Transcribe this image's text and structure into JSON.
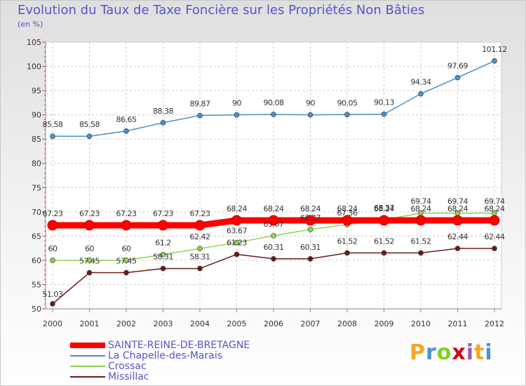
{
  "header": {
    "title": "Evolution du Taux de Taxe Foncière sur les Propriétés Non Bâties",
    "unit": "(en %)"
  },
  "brand": {
    "letters": [
      "P",
      "r",
      "o",
      "x",
      "i",
      "t",
      "i"
    ],
    "colors": [
      "#f5a623",
      "#4a90d9",
      "#7ed321",
      "#d0021b",
      "#9b59b6",
      "#f5a623",
      "#4a90d9"
    ]
  },
  "chart_data": {
    "type": "line",
    "title": "Evolution du Taux de Taxe Foncière sur les Propriétés Non Bâties",
    "ylabel": "(en %)",
    "xlabel": "",
    "ylim": [
      50,
      105
    ],
    "yticks": [
      50,
      55,
      60,
      65,
      70,
      75,
      80,
      85,
      90,
      95,
      100,
      105
    ],
    "categories": [
      "2000",
      "2001",
      "2002",
      "2003",
      "2004",
      "2005",
      "2006",
      "2007",
      "2008",
      "2009",
      "2010",
      "2011",
      "2012"
    ],
    "grid": true,
    "legend_position": "bottom-left",
    "series": [
      {
        "name": "SAINTE-REINE-DE-BRETAGNE",
        "color": "#ff0000",
        "values": [
          67.23,
          67.23,
          67.23,
          67.23,
          67.23,
          68.24,
          68.24,
          68.24,
          68.24,
          68.24,
          68.24,
          68.24,
          68.24
        ],
        "labels": [
          "67.23",
          "67.23",
          "67.23",
          "67.23",
          "67.23",
          "68.24",
          "68.24",
          "68.24",
          "68.24",
          "68.24",
          "68.24",
          "68.24",
          "68.24"
        ]
      },
      {
        "name": "La Chapelle-des-Marais",
        "color": "#4a90c8",
        "values": [
          85.58,
          85.58,
          86.65,
          88.38,
          89.87,
          90,
          90.08,
          90,
          90.05,
          90.13,
          94.34,
          97.69,
          101.12
        ],
        "labels": [
          "85.58",
          "85.58",
          "86.65",
          "88.38",
          "89.87",
          "90",
          "90.08",
          "90",
          "90.05",
          "90.13",
          "94.34",
          "97.69",
          "101.12"
        ]
      },
      {
        "name": "Crossac",
        "color": "#8fd14f",
        "values": [
          60,
          60,
          60,
          61.2,
          62.42,
          63.67,
          65.07,
          66.37,
          67.36,
          68.37,
          69.74,
          69.74,
          69.74
        ],
        "labels": [
          "60",
          "60",
          "60",
          "61.2",
          "62.42",
          "63.67",
          "65.07",
          "66.37",
          "67.36",
          "68.37",
          "69.74",
          "69.74",
          "69.74"
        ]
      },
      {
        "name": "Missillac",
        "color": "#6b1a1a",
        "values": [
          51.03,
          57.45,
          57.45,
          58.31,
          58.31,
          61.23,
          60.31,
          60.31,
          61.52,
          61.52,
          61.52,
          62.44,
          62.44
        ],
        "labels": [
          "51.03",
          "57.45",
          "57.45",
          "58.31",
          "58.31",
          "61.23",
          "60.31",
          "60.31",
          "61.52",
          "61.52",
          "61.52",
          "62.44",
          "62.44"
        ]
      }
    ]
  }
}
